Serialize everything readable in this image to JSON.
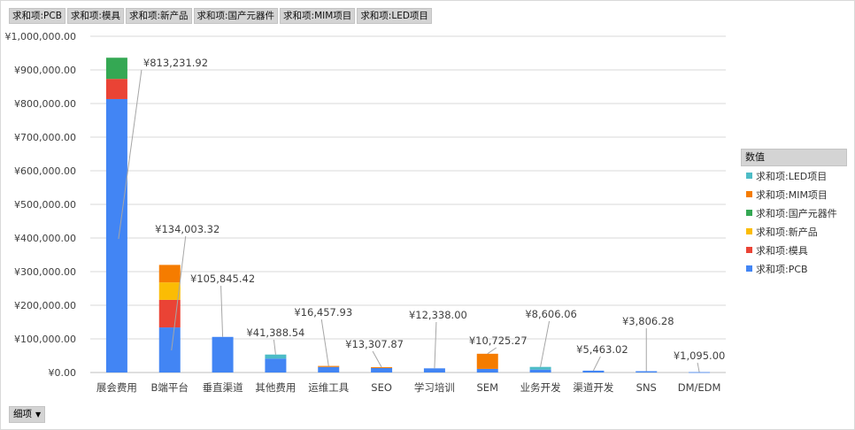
{
  "field_buttons": [
    "求和项:PCB",
    "求和项:模具",
    "求和项:新产品",
    "求和项:国产元器件",
    "求和项:MIM项目",
    "求和项:LED项目"
  ],
  "row_field_button": "细项",
  "legend": {
    "title": "数值",
    "items": [
      {
        "label": "求和项:LED项目",
        "color": "#4dbcc6"
      },
      {
        "label": "求和项:MIM项目",
        "color": "#f57c00"
      },
      {
        "label": "求和项:国产元器件",
        "color": "#34a853"
      },
      {
        "label": "求和项:新产品",
        "color": "#fbbc04"
      },
      {
        "label": "求和项:模具",
        "color": "#ea4335"
      },
      {
        "label": "求和项:PCB",
        "color": "#4285f4"
      }
    ]
  },
  "chart_data": {
    "type": "bar",
    "stacked": true,
    "categories": [
      "展会费用",
      "B端平台",
      "垂直渠道",
      "其他费用",
      "运维工具",
      "SEO",
      "学习培训",
      "SEM",
      "业务开发",
      "渠道开发",
      "SNS",
      "DM/EDM"
    ],
    "series": [
      {
        "name": "求和项:PCB",
        "color": "#4285f4",
        "values": [
          813231.92,
          134003.32,
          105845.42,
          41388.54,
          16457.93,
          13307.87,
          12338.0,
          10725.27,
          8606.06,
          5463.02,
          3806.28,
          1095.0
        ]
      },
      {
        "name": "求和项:模具",
        "color": "#ea4335",
        "values": [
          60000,
          82000,
          0,
          0,
          0,
          0,
          0,
          0,
          0,
          0,
          0,
          0
        ]
      },
      {
        "name": "求和项:新产品",
        "color": "#fbbc04",
        "values": [
          0,
          52000,
          0,
          0,
          0,
          0,
          0,
          0,
          0,
          0,
          0,
          0
        ]
      },
      {
        "name": "求和项:国产元器件",
        "color": "#34a853",
        "values": [
          63000,
          0,
          0,
          0,
          0,
          0,
          0,
          0,
          0,
          0,
          0,
          0
        ]
      },
      {
        "name": "求和项:MIM项目",
        "color": "#f57c00",
        "values": [
          0,
          52000,
          0,
          0,
          3000,
          2500,
          0,
          45000,
          0,
          0,
          0,
          0
        ]
      },
      {
        "name": "求和项:LED项目",
        "color": "#4dbcc6",
        "values": [
          0,
          0,
          0,
          12000,
          0,
          0,
          0,
          0,
          8000,
          0,
          0,
          0
        ]
      }
    ],
    "data_labels": [
      "¥813,231.92",
      "¥134,003.32",
      "¥105,845.42",
      "¥41,388.54",
      "¥16,457.93",
      "¥13,307.87",
      "¥12,338.00",
      "¥10,725.27",
      "¥8,606.06",
      "¥5,463.02",
      "¥3,806.28",
      "¥1,095.00"
    ],
    "ylim": [
      0,
      1000000
    ],
    "yticks": [
      0,
      100000,
      200000,
      300000,
      400000,
      500000,
      600000,
      700000,
      800000,
      900000,
      1000000
    ],
    "ytick_labels": [
      "¥0.00",
      "¥100,000.00",
      "¥200,000.00",
      "¥300,000.00",
      "¥400,000.00",
      "¥500,000.00",
      "¥600,000.00",
      "¥700,000.00",
      "¥800,000.00",
      "¥900,000.00",
      "¥1,000,000.00"
    ],
    "grid": true,
    "legend_position": "right"
  }
}
